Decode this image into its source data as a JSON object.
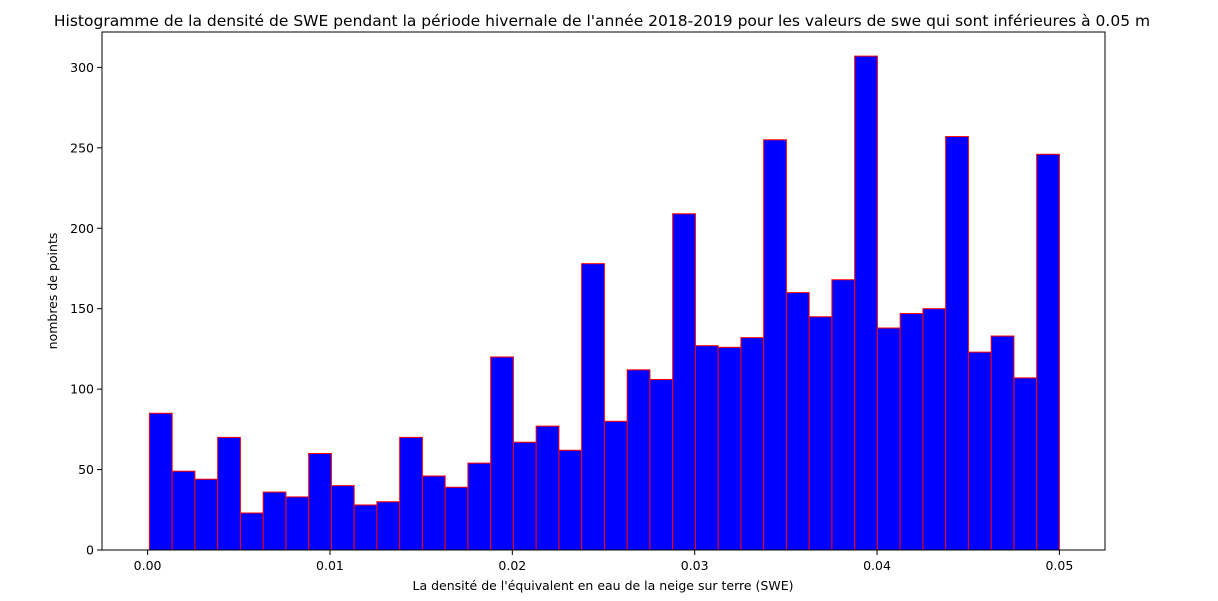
{
  "chart_data": {
    "type": "bar",
    "title": "Histogramme de la densité de SWE pendant la période hivernale de l'année 2018-2019 pour les valeurs de swe qui sont inférieures à 0.05 m",
    "xlabel": "La densité de l'équivalent en eau de la neige sur terre (SWE)",
    "ylabel": "nombres de points",
    "xlim": [
      -0.0025,
      0.0525
    ],
    "ylim": [
      0,
      322
    ],
    "bin_start": 0.0001,
    "bin_end": 0.05,
    "values": [
      85,
      49,
      44,
      70,
      23,
      36,
      33,
      60,
      40,
      28,
      30,
      70,
      46,
      39,
      54,
      120,
      67,
      77,
      62,
      178,
      80,
      112,
      106,
      209,
      127,
      126,
      132,
      255,
      160,
      145,
      168,
      307,
      138,
      147,
      150,
      257,
      123,
      133,
      107,
      246
    ],
    "x_ticks": [
      "0.00",
      "0.01",
      "0.02",
      "0.03",
      "0.04",
      "0.05"
    ],
    "x_tick_values": [
      0,
      0.01,
      0.02,
      0.03,
      0.04,
      0.05
    ],
    "y_ticks": [
      0,
      50,
      100,
      150,
      200,
      250,
      300
    ],
    "bar_fill": "#0000ff",
    "bar_edge": "#ff0000",
    "grid": false
  }
}
